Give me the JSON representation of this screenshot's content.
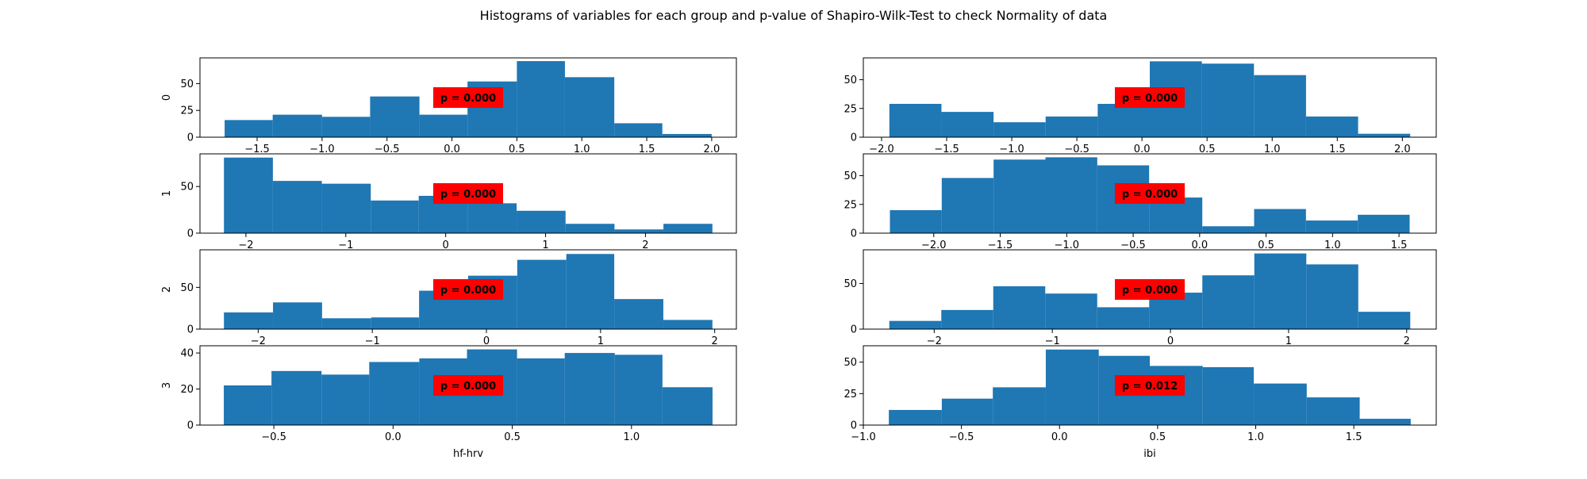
{
  "figure": {
    "title": "Histograms of variables for each group and p-value of Shapiro-Wilk-Test to check Normality of data"
  },
  "colors": {
    "bar": "#1f77b4",
    "badge": "#ff0000",
    "axis": "#000000",
    "background": "#ffffff"
  },
  "chart_data": [
    {
      "type": "bar",
      "group": "0",
      "variable": "hf-hrv",
      "ylabel": "0",
      "xlabel": "",
      "bin_edges": [
        -1.75,
        -1.38,
        -1.0,
        -0.63,
        -0.25,
        0.12,
        0.5,
        0.87,
        1.25,
        1.62,
        2.0
      ],
      "values": [
        16,
        21,
        19,
        38,
        21,
        52,
        71,
        56,
        13,
        3
      ],
      "xlim": [
        -1.94,
        2.19
      ],
      "ylim": [
        0,
        74
      ],
      "xticks": [
        -1.5,
        -1.0,
        -0.5,
        0.0,
        0.5,
        1.0,
        1.5,
        2.0
      ],
      "yticks": [
        0,
        25,
        50
      ],
      "annotation": "p = 0.000"
    },
    {
      "type": "bar",
      "group": "0",
      "variable": "ibi",
      "ylabel": "",
      "xlabel": "",
      "bin_edges": [
        -1.94,
        -1.54,
        -1.14,
        -0.74,
        -0.34,
        0.06,
        0.46,
        0.86,
        1.26,
        1.66,
        2.06
      ],
      "values": [
        29,
        22,
        13,
        18,
        29,
        66,
        64,
        54,
        18,
        3
      ],
      "xlim": [
        -2.14,
        2.26
      ],
      "ylim": [
        0,
        69
      ],
      "xticks": [
        -2.0,
        -1.5,
        -1.0,
        -0.5,
        0.0,
        0.5,
        1.0,
        1.5,
        2.0
      ],
      "yticks": [
        0,
        25,
        50
      ],
      "annotation": "p = 0.000"
    },
    {
      "type": "bar",
      "group": "1",
      "variable": "hf-hrv",
      "ylabel": "1",
      "xlabel": "",
      "bin_edges": [
        -2.22,
        -1.73,
        -1.24,
        -0.75,
        -0.27,
        0.22,
        0.71,
        1.2,
        1.69,
        2.18,
        2.67
      ],
      "values": [
        81,
        56,
        53,
        35,
        40,
        32,
        24,
        10,
        4,
        10
      ],
      "xlim": [
        -2.46,
        2.91
      ],
      "ylim": [
        0,
        85
      ],
      "xticks": [
        -2,
        -1,
        0,
        1,
        2
      ],
      "yticks": [
        0,
        50
      ],
      "annotation": "p = 0.000"
    },
    {
      "type": "bar",
      "group": "1",
      "variable": "ibi",
      "ylabel": "",
      "xlabel": "",
      "bin_edges": [
        -2.33,
        -1.94,
        -1.55,
        -1.16,
        -0.77,
        -0.38,
        0.02,
        0.41,
        0.8,
        1.19,
        1.58
      ],
      "values": [
        20,
        48,
        64,
        66,
        59,
        31,
        6,
        21,
        11,
        16
      ],
      "xlim": [
        -2.53,
        1.78
      ],
      "ylim": [
        0,
        69
      ],
      "xticks": [
        -2.0,
        -1.5,
        -1.0,
        -0.5,
        0.0,
        0.5,
        1.0,
        1.5
      ],
      "yticks": [
        0,
        25,
        50
      ],
      "annotation": "p = 0.000"
    },
    {
      "type": "bar",
      "group": "2",
      "variable": "hf-hrv",
      "ylabel": "2",
      "xlabel": "",
      "bin_edges": [
        -2.3,
        -1.87,
        -1.44,
        -1.01,
        -0.59,
        -0.16,
        0.27,
        0.7,
        1.12,
        1.55,
        1.98
      ],
      "values": [
        20,
        32,
        13,
        14,
        46,
        64,
        83,
        90,
        36,
        11
      ],
      "xlim": [
        -2.51,
        2.19
      ],
      "ylim": [
        0,
        95
      ],
      "xticks": [
        -2,
        -1,
        0,
        1,
        2
      ],
      "yticks": [
        0,
        50
      ],
      "annotation": "p = 0.000"
    },
    {
      "type": "bar",
      "group": "2",
      "variable": "ibi",
      "ylabel": "",
      "xlabel": "",
      "bin_edges": [
        -2.38,
        -1.94,
        -1.5,
        -1.06,
        -0.62,
        -0.18,
        0.27,
        0.71,
        1.15,
        1.59,
        2.03
      ],
      "values": [
        9,
        21,
        47,
        39,
        24,
        40,
        59,
        83,
        71,
        19
      ],
      "xlim": [
        -2.6,
        2.25
      ],
      "ylim": [
        0,
        87
      ],
      "xticks": [
        -2,
        -1,
        0,
        1,
        2
      ],
      "yticks": [
        0,
        50
      ],
      "annotation": "p = 0.000"
    },
    {
      "type": "bar",
      "group": "3",
      "variable": "hf-hrv",
      "ylabel": "3",
      "xlabel": "hf-hrv",
      "bin_edges": [
        -0.71,
        -0.51,
        -0.3,
        -0.1,
        0.11,
        0.31,
        0.52,
        0.72,
        0.93,
        1.13,
        1.34
      ],
      "values": [
        22,
        30,
        28,
        35,
        37,
        42,
        37,
        40,
        39,
        21
      ],
      "xlim": [
        -0.81,
        1.44
      ],
      "ylim": [
        0,
        44
      ],
      "xticks": [
        -0.5,
        0.0,
        0.5,
        1.0
      ],
      "yticks": [
        0,
        20,
        40
      ],
      "annotation": "p = 0.000"
    },
    {
      "type": "bar",
      "group": "3",
      "variable": "ibi",
      "ylabel": "",
      "xlabel": "ibi",
      "bin_edges": [
        -0.87,
        -0.6,
        -0.34,
        -0.07,
        0.2,
        0.46,
        0.73,
        0.99,
        1.26,
        1.53,
        1.79
      ],
      "values": [
        12,
        21,
        30,
        60,
        55,
        47,
        46,
        33,
        22,
        5
      ],
      "xlim": [
        -1.0,
        1.92
      ],
      "ylim": [
        0,
        63
      ],
      "xticks": [
        -1.0,
        -0.5,
        0.0,
        0.5,
        1.0,
        1.5
      ],
      "yticks": [
        0,
        25,
        50
      ],
      "annotation": "p = 0.012"
    }
  ]
}
